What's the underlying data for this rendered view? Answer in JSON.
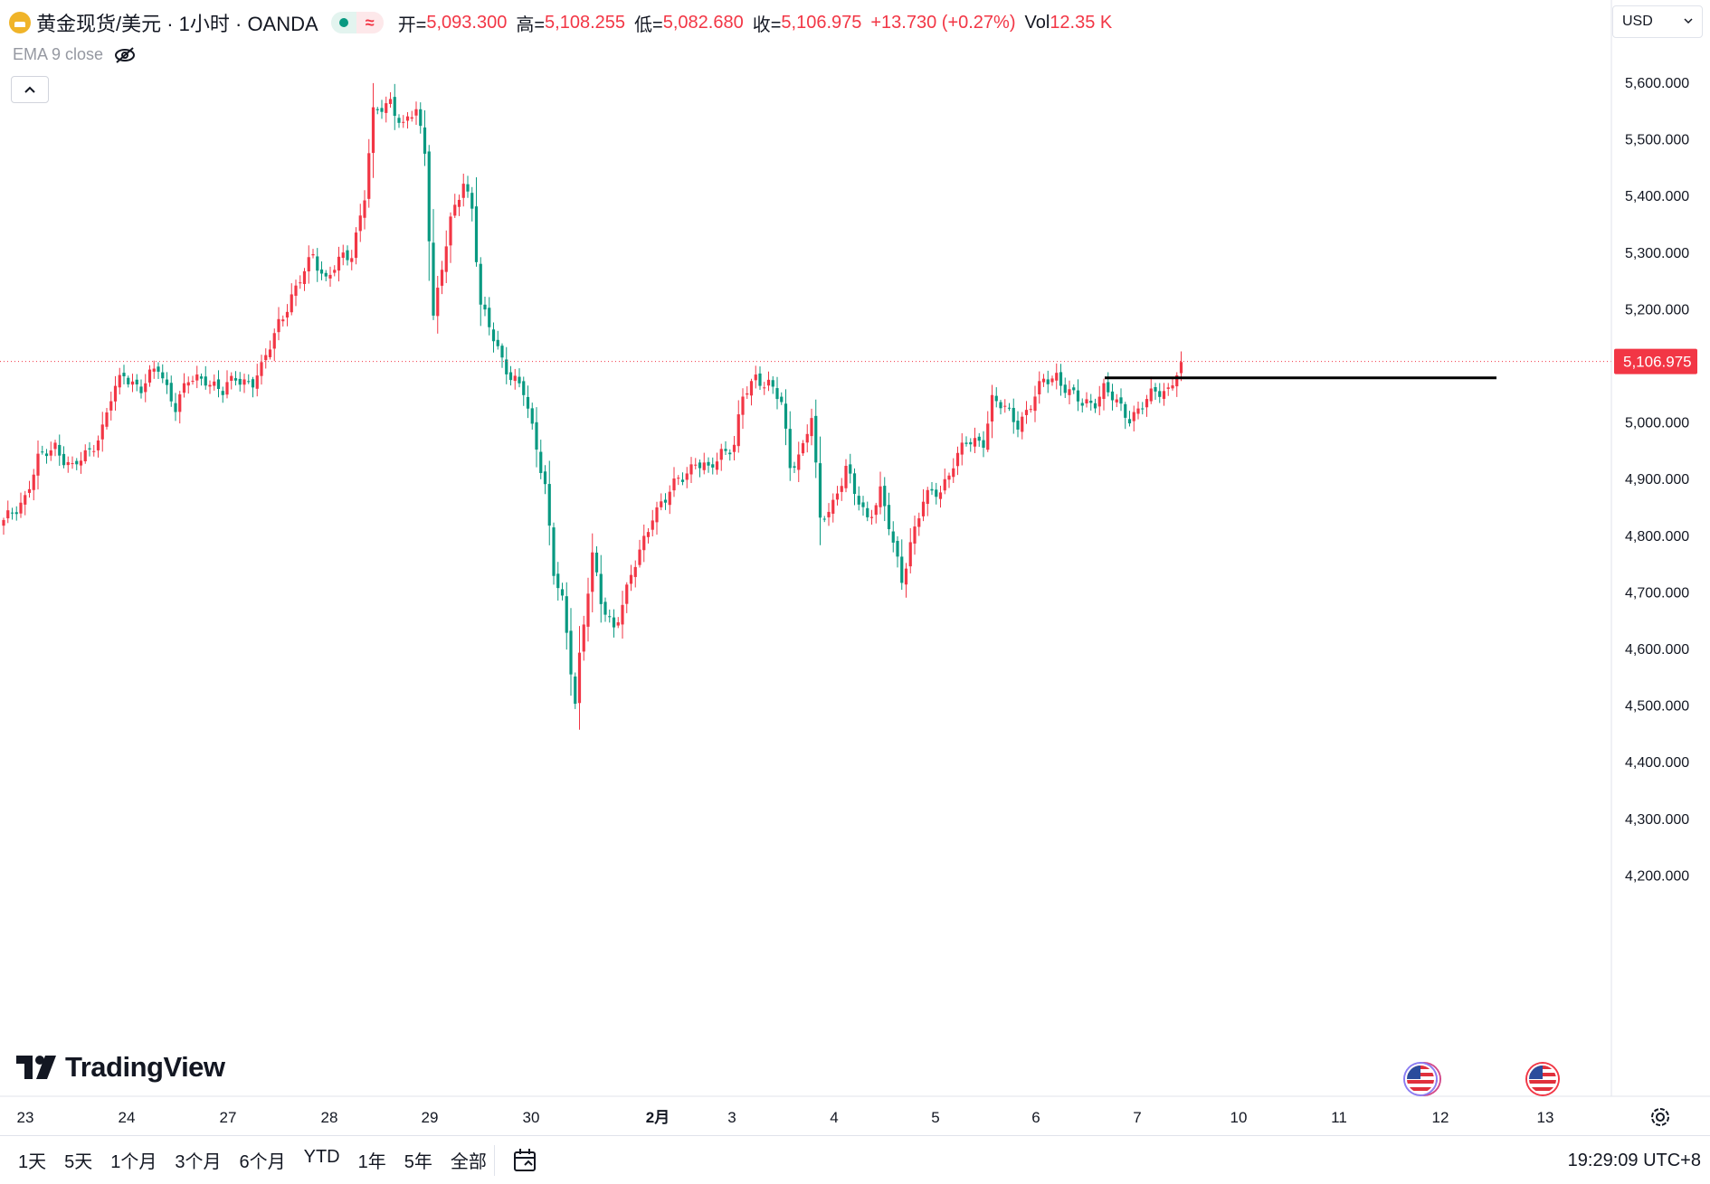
{
  "header": {
    "symbol": "黄金现货/美元 · 1小时 · OANDA",
    "wave_glyph": "≈",
    "open_label": "开=",
    "open": "5,093.300",
    "high_label": "高=",
    "high": "5,108.255",
    "low_label": "低=",
    "low": "5,082.680",
    "close_label": "收=",
    "close": "5,106.975",
    "change": "+13.730 (+0.27%)",
    "vol_label": "Vol",
    "vol": "12.35 K"
  },
  "indicator": {
    "label": "EMA 9 close"
  },
  "currency": {
    "label": "USD"
  },
  "brand": {
    "name": "TradingView"
  },
  "timeframes": [
    "1天",
    "5天",
    "1个月",
    "3个月",
    "6个月",
    "YTD",
    "1年",
    "5年",
    "全部"
  ],
  "clock": "19:29:09 UTC+8",
  "colors": {
    "up": "#f23645",
    "down": "#089981",
    "last_price_bg": "#f23645",
    "line": "#000000"
  },
  "icons": [
    "gold-symbol-icon",
    "eye-off-icon",
    "chevron-up-icon",
    "chevron-down-icon",
    "calendar-icon",
    "settings-icon",
    "us-flag-icon"
  ],
  "chart_data": {
    "type": "candlestick",
    "y_ticks": [
      {
        "value": 5600,
        "label": "5,600.000"
      },
      {
        "value": 5500,
        "label": "5,500.000"
      },
      {
        "value": 5400,
        "label": "5,400.000"
      },
      {
        "value": 5300,
        "label": "5,300.000"
      },
      {
        "value": 5200,
        "label": "5,200.000"
      },
      {
        "value": 5000,
        "label": "5,000.000"
      },
      {
        "value": 4900,
        "label": "4,900.000"
      },
      {
        "value": 4800,
        "label": "4,800.000"
      },
      {
        "value": 4700,
        "label": "4,700.000"
      },
      {
        "value": 4600,
        "label": "4,600.000"
      },
      {
        "value": 4500,
        "label": "4,500.000"
      },
      {
        "value": 4400,
        "label": "4,400.000"
      },
      {
        "value": 4300,
        "label": "4,300.000"
      },
      {
        "value": 4200,
        "label": "4,200.000"
      }
    ],
    "last_price": {
      "value": 5106.975,
      "label": "5,106.975"
    },
    "x_labels": [
      "23",
      "24",
      "27",
      "28",
      "29",
      "30",
      "2月",
      "3",
      "4",
      "5",
      "6",
      "7",
      "10",
      "11",
      "12",
      "13"
    ],
    "horizontal_line": {
      "value": 5078,
      "from": "7",
      "to": "12"
    },
    "ohlc_path": [
      [
        0,
        4820
      ],
      [
        5,
        4870
      ],
      [
        8,
        4930
      ],
      [
        12,
        4960
      ],
      [
        16,
        4915
      ],
      [
        20,
        4950
      ],
      [
        23,
        4990
      ],
      [
        25,
        5040
      ],
      [
        28,
        5085
      ],
      [
        32,
        5060
      ],
      [
        36,
        5095
      ],
      [
        40,
        5030
      ],
      [
        43,
        5070
      ],
      [
        47,
        5080
      ],
      [
        51,
        5050
      ],
      [
        54,
        5080
      ],
      [
        58,
        5070
      ],
      [
        60,
        5090
      ],
      [
        64,
        5180
      ],
      [
        68,
        5230
      ],
      [
        72,
        5300
      ],
      [
        75,
        5250
      ],
      [
        79,
        5290
      ],
      [
        81,
        5300
      ],
      [
        84,
        5400
      ],
      [
        86,
        5540
      ],
      [
        90,
        5570
      ],
      [
        93,
        5520
      ],
      [
        96,
        5550
      ],
      [
        98,
        5480
      ],
      [
        100,
        5190
      ],
      [
        104,
        5350
      ],
      [
        107,
        5430
      ],
      [
        109,
        5380
      ],
      [
        111,
        5200
      ],
      [
        114,
        5150
      ],
      [
        118,
        5080
      ],
      [
        121,
        5050
      ],
      [
        124,
        4960
      ],
      [
        126,
        4890
      ],
      [
        128,
        4730
      ],
      [
        130,
        4680
      ],
      [
        133,
        4510
      ],
      [
        134,
        4590
      ],
      [
        137,
        4760
      ],
      [
        139,
        4680
      ],
      [
        142,
        4640
      ],
      [
        145,
        4700
      ],
      [
        148,
        4770
      ],
      [
        151,
        4840
      ],
      [
        154,
        4860
      ],
      [
        157,
        4900
      ],
      [
        161,
        4930
      ],
      [
        164,
        4910
      ],
      [
        167,
        4950
      ],
      [
        170,
        4960
      ],
      [
        172,
        5040
      ],
      [
        175,
        5080
      ],
      [
        178,
        5070
      ],
      [
        181,
        5030
      ],
      [
        183,
        4920
      ],
      [
        186,
        4960
      ],
      [
        188,
        5010
      ],
      [
        190,
        4820
      ],
      [
        193,
        4860
      ],
      [
        196,
        4920
      ],
      [
        198,
        4870
      ],
      [
        201,
        4830
      ],
      [
        204,
        4880
      ],
      [
        207,
        4780
      ],
      [
        209,
        4720
      ],
      [
        211,
        4790
      ],
      [
        214,
        4860
      ],
      [
        218,
        4880
      ],
      [
        221,
        4930
      ],
      [
        224,
        4960
      ],
      [
        228,
        4970
      ],
      [
        230,
        5040
      ],
      [
        233,
        5020
      ],
      [
        236,
        5000
      ],
      [
        239,
        5030
      ],
      [
        242,
        5070
      ],
      [
        245,
        5085
      ],
      [
        248,
        5050
      ],
      [
        251,
        5030
      ],
      [
        254,
        5040
      ],
      [
        256,
        5060
      ],
      [
        259,
        5030
      ],
      [
        262,
        5010
      ],
      [
        265,
        5030
      ],
      [
        268,
        5050
      ],
      [
        271,
        5060
      ],
      [
        274,
        5106
      ]
    ]
  }
}
